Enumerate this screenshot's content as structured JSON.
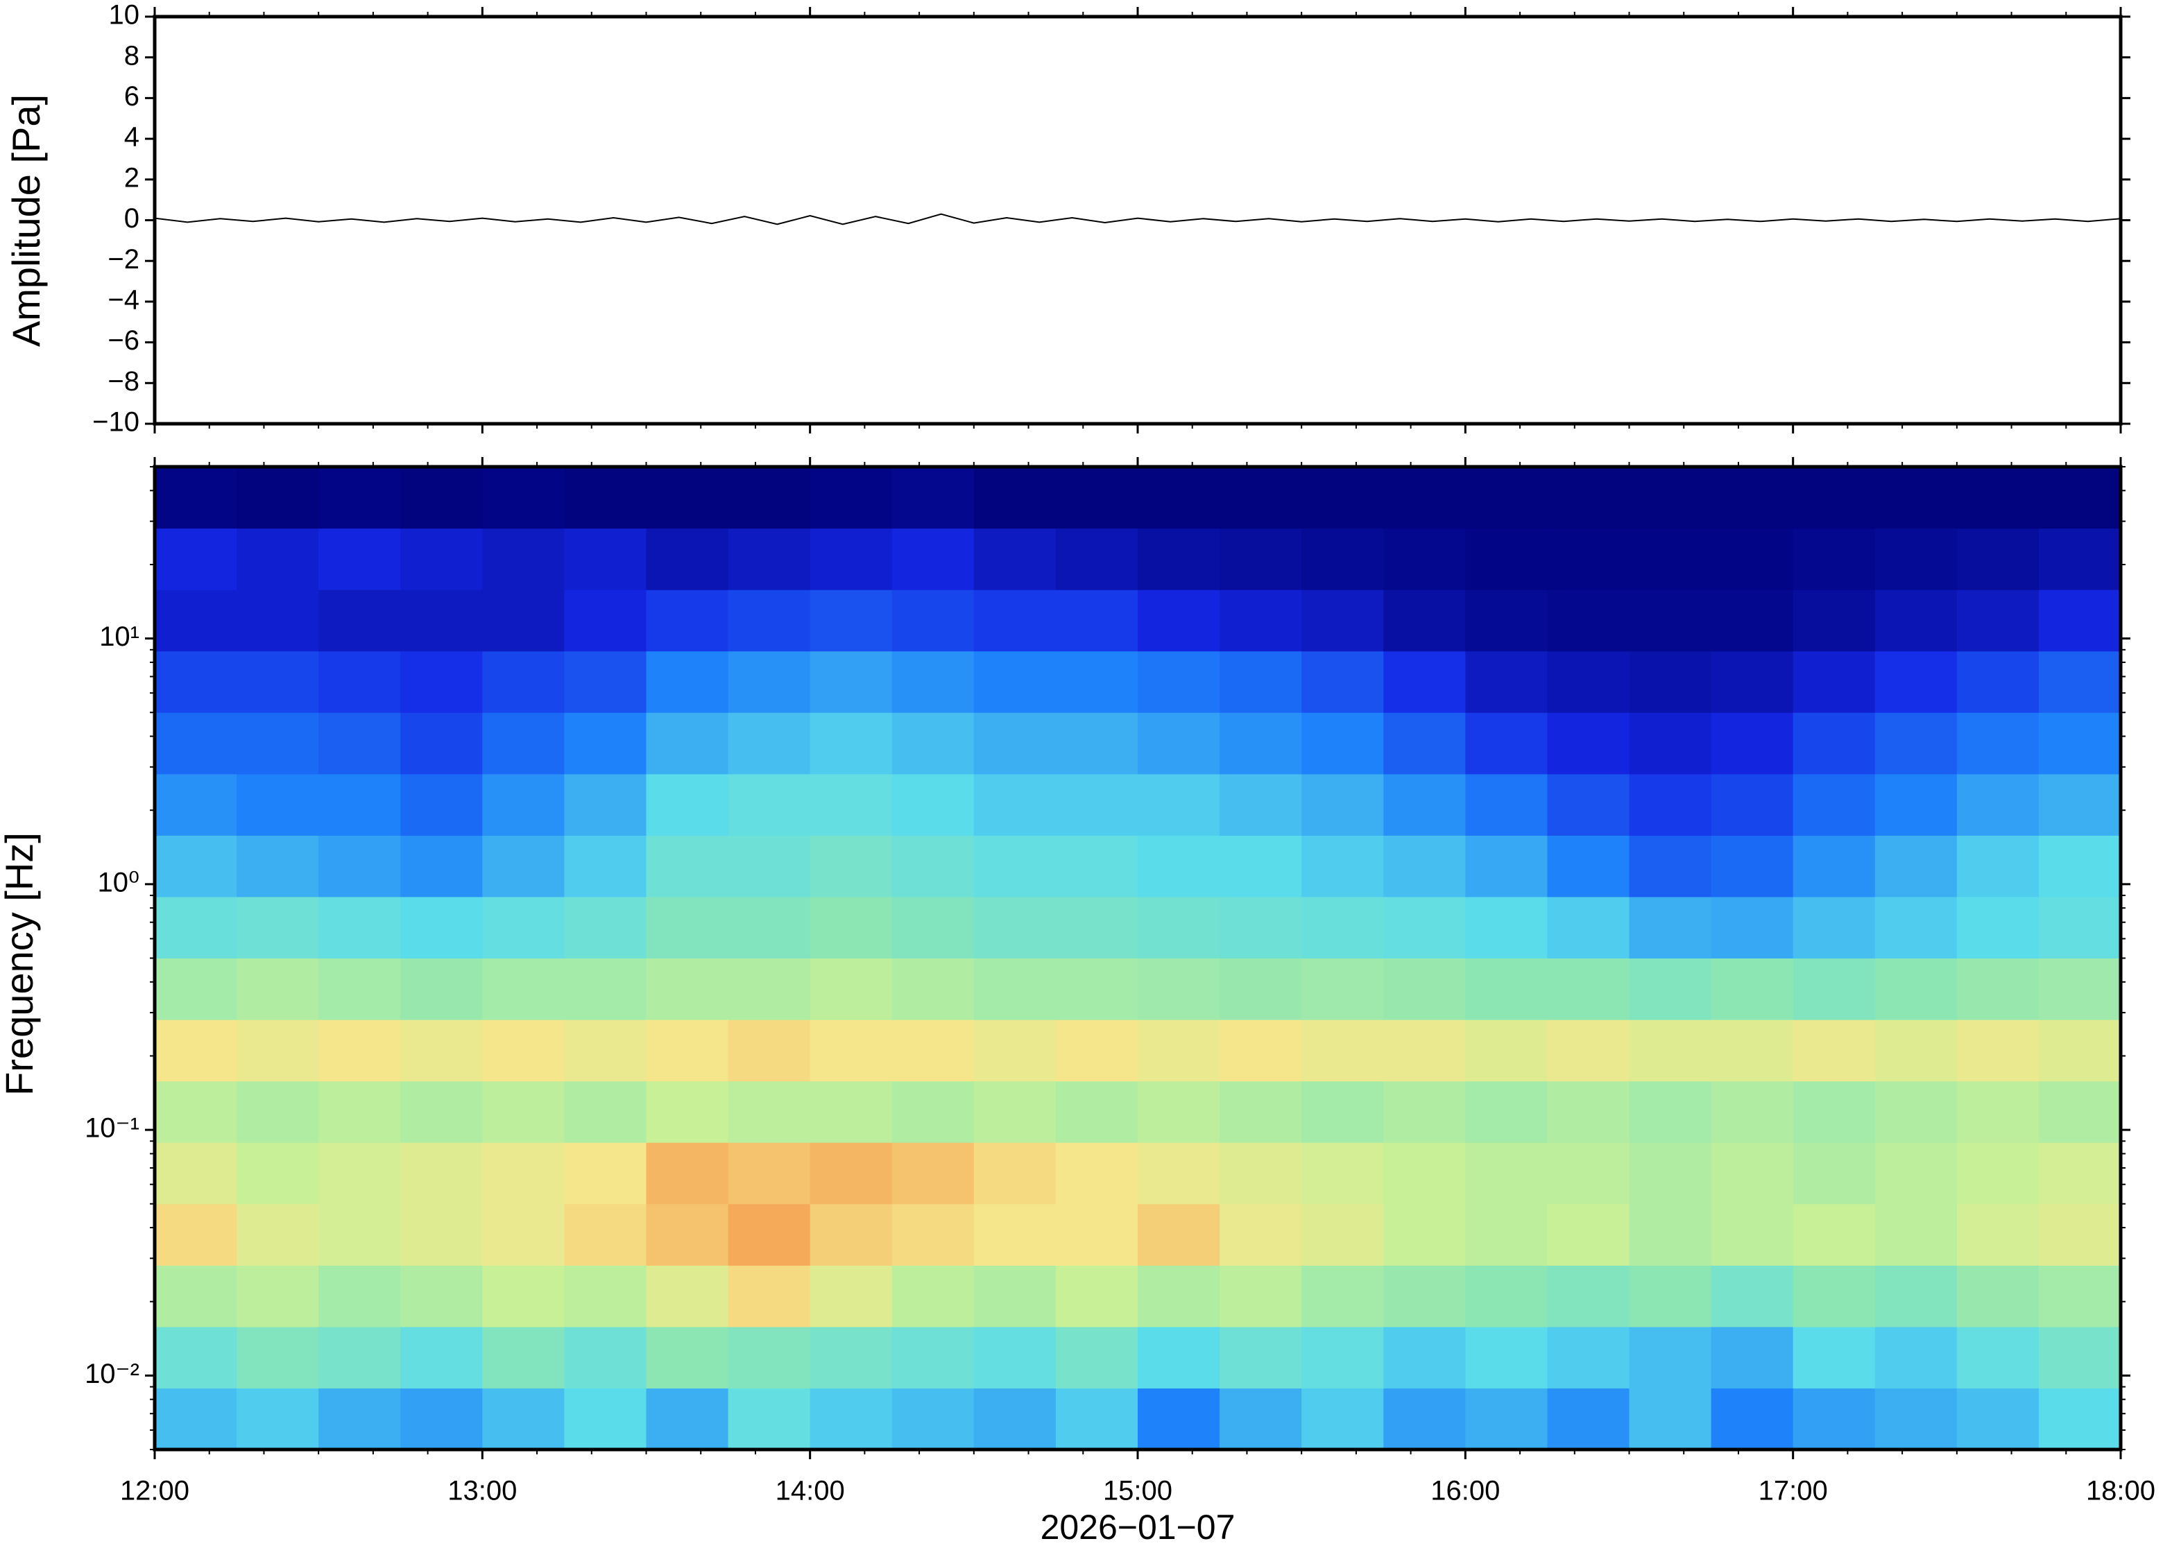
{
  "chart_data": [
    {
      "type": "line",
      "ylabel": "Amplitude [Pa]",
      "color": "#000000",
      "xlim": [
        12,
        18
      ],
      "xticks": [
        12,
        13,
        14,
        15,
        16,
        17,
        18
      ],
      "ylim": [
        -10,
        10
      ],
      "yticks": [
        {
          "value": -10,
          "label": "−10"
        },
        {
          "value": -8,
          "label": "−8"
        },
        {
          "value": -6,
          "label": "−6"
        },
        {
          "value": -4,
          "label": "−4"
        },
        {
          "value": -2,
          "label": "−2"
        },
        0,
        2,
        4,
        6,
        8,
        10
      ],
      "x": [
        12,
        12.1,
        12.2,
        12.3,
        12.4,
        12.5,
        12.6,
        12.7,
        12.8,
        12.9,
        13,
        13.1,
        13.2,
        13.3,
        13.4,
        13.5,
        13.6,
        13.7,
        13.8,
        13.9,
        14,
        14.1,
        14.2,
        14.3,
        14.4,
        14.5,
        14.6,
        14.7,
        14.8,
        14.9,
        15,
        15.1,
        15.2,
        15.3,
        15.4,
        15.5,
        15.6,
        15.7,
        15.8,
        15.9,
        16,
        16.1,
        16.2,
        16.3,
        16.4,
        16.5,
        16.6,
        16.7,
        16.8,
        16.9,
        17,
        17.1,
        17.2,
        17.3,
        17.4,
        17.5,
        17.6,
        17.7,
        17.8,
        17.9,
        18
      ],
      "values": [
        0.1,
        -0.1,
        0.08,
        -0.06,
        0.1,
        -0.08,
        0.06,
        -0.1,
        0.08,
        -0.06,
        0.1,
        -0.08,
        0.06,
        -0.1,
        0.12,
        -0.1,
        0.14,
        -0.16,
        0.18,
        -0.2,
        0.22,
        -0.2,
        0.18,
        -0.16,
        0.3,
        -0.14,
        0.12,
        -0.1,
        0.12,
        -0.12,
        0.1,
        -0.08,
        0.08,
        -0.06,
        0.08,
        -0.08,
        0.06,
        -0.06,
        0.08,
        -0.06,
        0.06,
        -0.08,
        0.06,
        -0.06,
        0.06,
        -0.04,
        0.06,
        -0.06,
        0.04,
        -0.06,
        0.06,
        -0.04,
        0.06,
        -0.06,
        0.04,
        -0.06,
        0.06,
        -0.04,
        0.06,
        -0.06,
        0.08
      ]
    },
    {
      "type": "heatmap",
      "ylabel": "Frequency [Hz]",
      "xlabel": "2026−01−07",
      "log_y": true,
      "xlim": [
        12,
        18
      ],
      "xticks": [
        {
          "value": 12,
          "label": "12:00"
        },
        {
          "value": 13,
          "label": "13:00"
        },
        {
          "value": 14,
          "label": "14:00"
        },
        {
          "value": 15,
          "label": "15:00"
        },
        {
          "value": 16,
          "label": "16:00"
        },
        {
          "value": 17,
          "label": "17:00"
        },
        {
          "value": 18,
          "label": "18:00"
        }
      ],
      "ylim": [
        0.005,
        50
      ],
      "yticks": [
        {
          "value": 0.01,
          "label": "10⁻²"
        },
        {
          "value": 0.1,
          "label": "10⁻¹"
        },
        {
          "value": 1,
          "label": "10⁰"
        },
        {
          "value": 10,
          "label": "10¹"
        }
      ],
      "x_bins": [
        12,
        12.25,
        12.5,
        12.75,
        13,
        13.25,
        13.5,
        13.75,
        14,
        14.25,
        14.5,
        14.75,
        15,
        15.25,
        15.5,
        15.75,
        16,
        16.25,
        16.5,
        16.75,
        17,
        17.25,
        17.5,
        17.75,
        18
      ],
      "y_bins": [
        0.005,
        0.00889,
        0.0158,
        0.0281,
        0.05,
        0.0889,
        0.158,
        0.281,
        0.5,
        0.889,
        1.58,
        2.81,
        5,
        8.89,
        15.8,
        28.1,
        50
      ],
      "z": [
        [
          0.38,
          0.4,
          0.36,
          0.34,
          0.38,
          0.42,
          0.36,
          0.44,
          0.4,
          0.38,
          0.36,
          0.4,
          0.3,
          0.36,
          0.4,
          0.34,
          0.36,
          0.32,
          0.38,
          0.3,
          0.34,
          0.36,
          0.38,
          0.42
        ],
        [
          0.46,
          0.5,
          0.48,
          0.44,
          0.5,
          0.46,
          0.52,
          0.5,
          0.48,
          0.46,
          0.44,
          0.48,
          0.42,
          0.46,
          0.44,
          0.4,
          0.42,
          0.4,
          0.38,
          0.36,
          0.42,
          0.4,
          0.44,
          0.48
        ],
        [
          0.58,
          0.6,
          0.56,
          0.58,
          0.62,
          0.6,
          0.66,
          0.72,
          0.66,
          0.6,
          0.58,
          0.62,
          0.58,
          0.6,
          0.56,
          0.54,
          0.52,
          0.5,
          0.52,
          0.48,
          0.52,
          0.5,
          0.54,
          0.56
        ],
        [
          0.72,
          0.66,
          0.64,
          0.66,
          0.68,
          0.72,
          0.76,
          0.8,
          0.74,
          0.72,
          0.7,
          0.7,
          0.74,
          0.68,
          0.66,
          0.62,
          0.6,
          0.62,
          0.58,
          0.6,
          0.62,
          0.6,
          0.64,
          0.66
        ],
        [
          0.66,
          0.62,
          0.64,
          0.66,
          0.68,
          0.7,
          0.78,
          0.76,
          0.78,
          0.76,
          0.72,
          0.7,
          0.68,
          0.66,
          0.64,
          0.62,
          0.6,
          0.6,
          0.58,
          0.6,
          0.58,
          0.6,
          0.62,
          0.64
        ],
        [
          0.6,
          0.58,
          0.6,
          0.58,
          0.6,
          0.58,
          0.62,
          0.6,
          0.6,
          0.58,
          0.6,
          0.58,
          0.6,
          0.58,
          0.56,
          0.58,
          0.56,
          0.58,
          0.56,
          0.58,
          0.56,
          0.58,
          0.6,
          0.58
        ],
        [
          0.7,
          0.68,
          0.7,
          0.68,
          0.7,
          0.68,
          0.7,
          0.72,
          0.7,
          0.7,
          0.68,
          0.7,
          0.68,
          0.7,
          0.68,
          0.68,
          0.66,
          0.68,
          0.66,
          0.66,
          0.68,
          0.66,
          0.68,
          0.66
        ],
        [
          0.56,
          0.58,
          0.56,
          0.54,
          0.56,
          0.56,
          0.58,
          0.58,
          0.6,
          0.58,
          0.56,
          0.56,
          0.55,
          0.54,
          0.55,
          0.54,
          0.52,
          0.52,
          0.5,
          0.52,
          0.5,
          0.52,
          0.54,
          0.55
        ],
        [
          0.45,
          0.46,
          0.44,
          0.42,
          0.44,
          0.46,
          0.5,
          0.5,
          0.52,
          0.5,
          0.48,
          0.48,
          0.47,
          0.46,
          0.45,
          0.44,
          0.42,
          0.4,
          0.36,
          0.35,
          0.38,
          0.4,
          0.42,
          0.44
        ],
        [
          0.38,
          0.36,
          0.34,
          0.32,
          0.36,
          0.4,
          0.46,
          0.46,
          0.48,
          0.46,
          0.44,
          0.44,
          0.42,
          0.42,
          0.4,
          0.38,
          0.35,
          0.3,
          0.24,
          0.26,
          0.32,
          0.36,
          0.4,
          0.42
        ],
        [
          0.32,
          0.3,
          0.3,
          0.26,
          0.32,
          0.36,
          0.42,
          0.44,
          0.44,
          0.42,
          0.4,
          0.4,
          0.4,
          0.38,
          0.36,
          0.32,
          0.28,
          0.22,
          0.18,
          0.2,
          0.26,
          0.3,
          0.34,
          0.36
        ],
        [
          0.26,
          0.26,
          0.24,
          0.2,
          0.26,
          0.3,
          0.36,
          0.38,
          0.4,
          0.38,
          0.36,
          0.36,
          0.34,
          0.32,
          0.3,
          0.24,
          0.18,
          0.14,
          0.12,
          0.14,
          0.2,
          0.24,
          0.28,
          0.3
        ],
        [
          0.2,
          0.2,
          0.18,
          0.16,
          0.2,
          0.22,
          0.3,
          0.32,
          0.34,
          0.32,
          0.3,
          0.3,
          0.28,
          0.26,
          0.22,
          0.16,
          0.1,
          0.08,
          0.07,
          0.08,
          0.12,
          0.16,
          0.2,
          0.24
        ],
        [
          0.12,
          0.12,
          0.1,
          0.1,
          0.1,
          0.14,
          0.18,
          0.2,
          0.22,
          0.2,
          0.18,
          0.18,
          0.14,
          0.12,
          0.1,
          0.06,
          0.04,
          0.03,
          0.03,
          0.03,
          0.05,
          0.08,
          0.1,
          0.14
        ],
        [
          0.14,
          0.12,
          0.14,
          0.12,
          0.1,
          0.12,
          0.08,
          0.1,
          0.12,
          0.14,
          0.1,
          0.08,
          0.06,
          0.05,
          0.04,
          0.03,
          0.02,
          0.02,
          0.02,
          0.02,
          0.03,
          0.04,
          0.05,
          0.07
        ],
        [
          0.02,
          0.01,
          0.02,
          0.01,
          0.02,
          0.01,
          0.01,
          0.01,
          0.02,
          0.03,
          0.01,
          0.01,
          0.01,
          0.01,
          0.01,
          0.01,
          0.01,
          0.01,
          0.01,
          0.01,
          0.01,
          0.01,
          0.01,
          0.01
        ]
      ]
    }
  ]
}
